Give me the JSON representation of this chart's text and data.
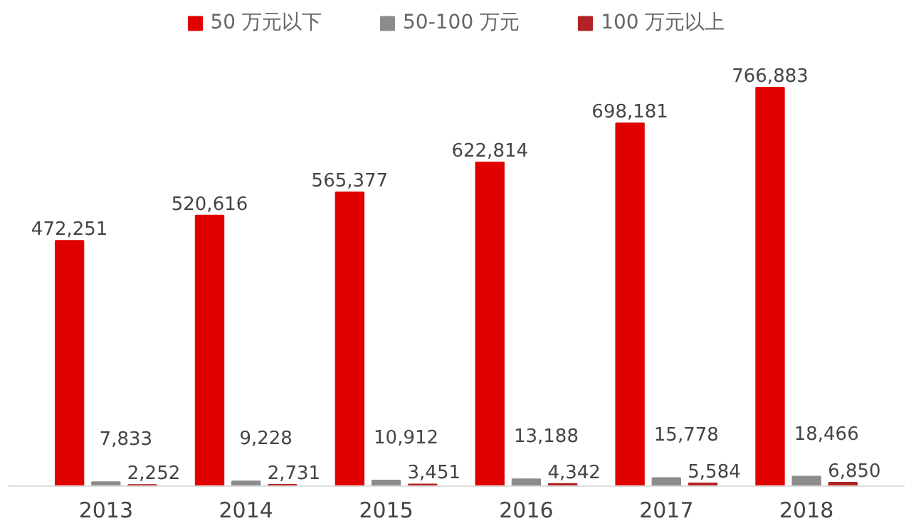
{
  "chart_data": {
    "type": "bar",
    "categories": [
      "2013",
      "2014",
      "2015",
      "2016",
      "2017",
      "2018"
    ],
    "series": [
      {
        "name": "50 万元以下",
        "color": "#e00000",
        "values": [
          472251,
          520616,
          565377,
          622814,
          698181,
          766883
        ],
        "value_labels": [
          "472,251",
          "520,616",
          "565,377",
          "622,814",
          "698,181",
          "766,883"
        ]
      },
      {
        "name": "50-100 万元",
        "color": "#8c8c8c",
        "values": [
          7833,
          9228,
          10912,
          13188,
          15778,
          18466
        ],
        "value_labels": [
          "7,833",
          "9,228",
          "10,912",
          "13,188",
          "15,778",
          "18,466"
        ]
      },
      {
        "name": "100 万元以上",
        "color": "#b22222",
        "values": [
          2252,
          2731,
          3451,
          4342,
          5584,
          6850
        ],
        "value_labels": [
          "2,252",
          "2,731",
          "3,451",
          "4,342",
          "5,584",
          "6,850"
        ]
      }
    ],
    "legend": "top"
  }
}
